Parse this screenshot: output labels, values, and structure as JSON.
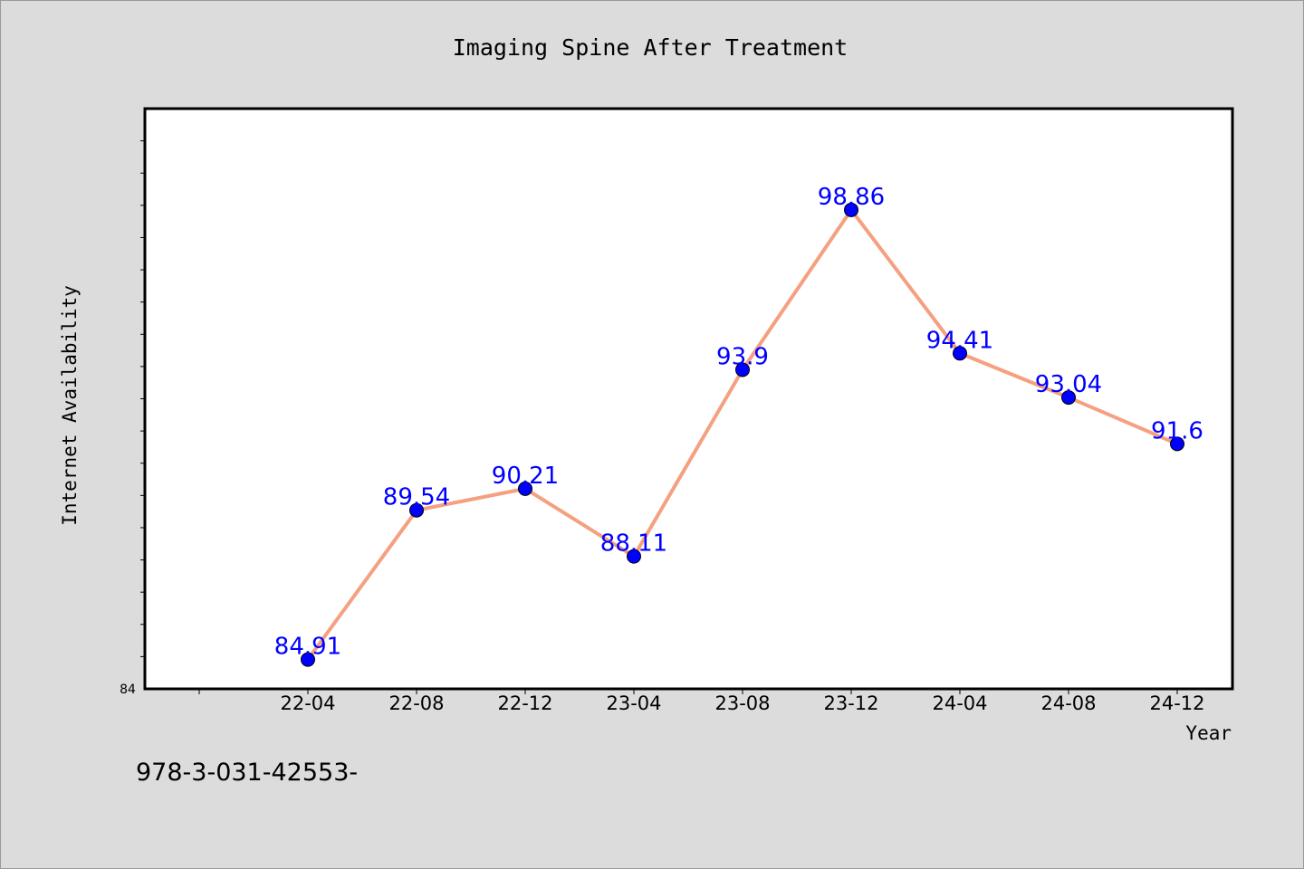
{
  "chart_data": {
    "type": "line",
    "title": "Imaging Spine After Treatment",
    "xlabel": "Year",
    "ylabel": "Internet Availability",
    "categories": [
      "22-04",
      "22-08",
      "22-12",
      "23-04",
      "23-08",
      "23-12",
      "24-04",
      "24-08",
      "24-12"
    ],
    "series": [
      {
        "values": [
          84.91,
          89.54,
          90.21,
          88.11,
          93.9,
          98.86,
          94.41,
          93.04,
          91.6
        ],
        "labels": [
          "84.91",
          "89.54",
          "90.21",
          "88.11",
          "93.9",
          "98.86",
          "94.41",
          "93.04",
          "91.6"
        ]
      }
    ],
    "ylim": [
      84,
      102
    ],
    "ytick_labels_shown": [
      "84"
    ],
    "grid": false,
    "legend": "none",
    "line_color": "#f4a081",
    "marker_color": "#0000ff",
    "label_color": "#0000ff"
  },
  "footer_text": "978-3-031-42553-"
}
